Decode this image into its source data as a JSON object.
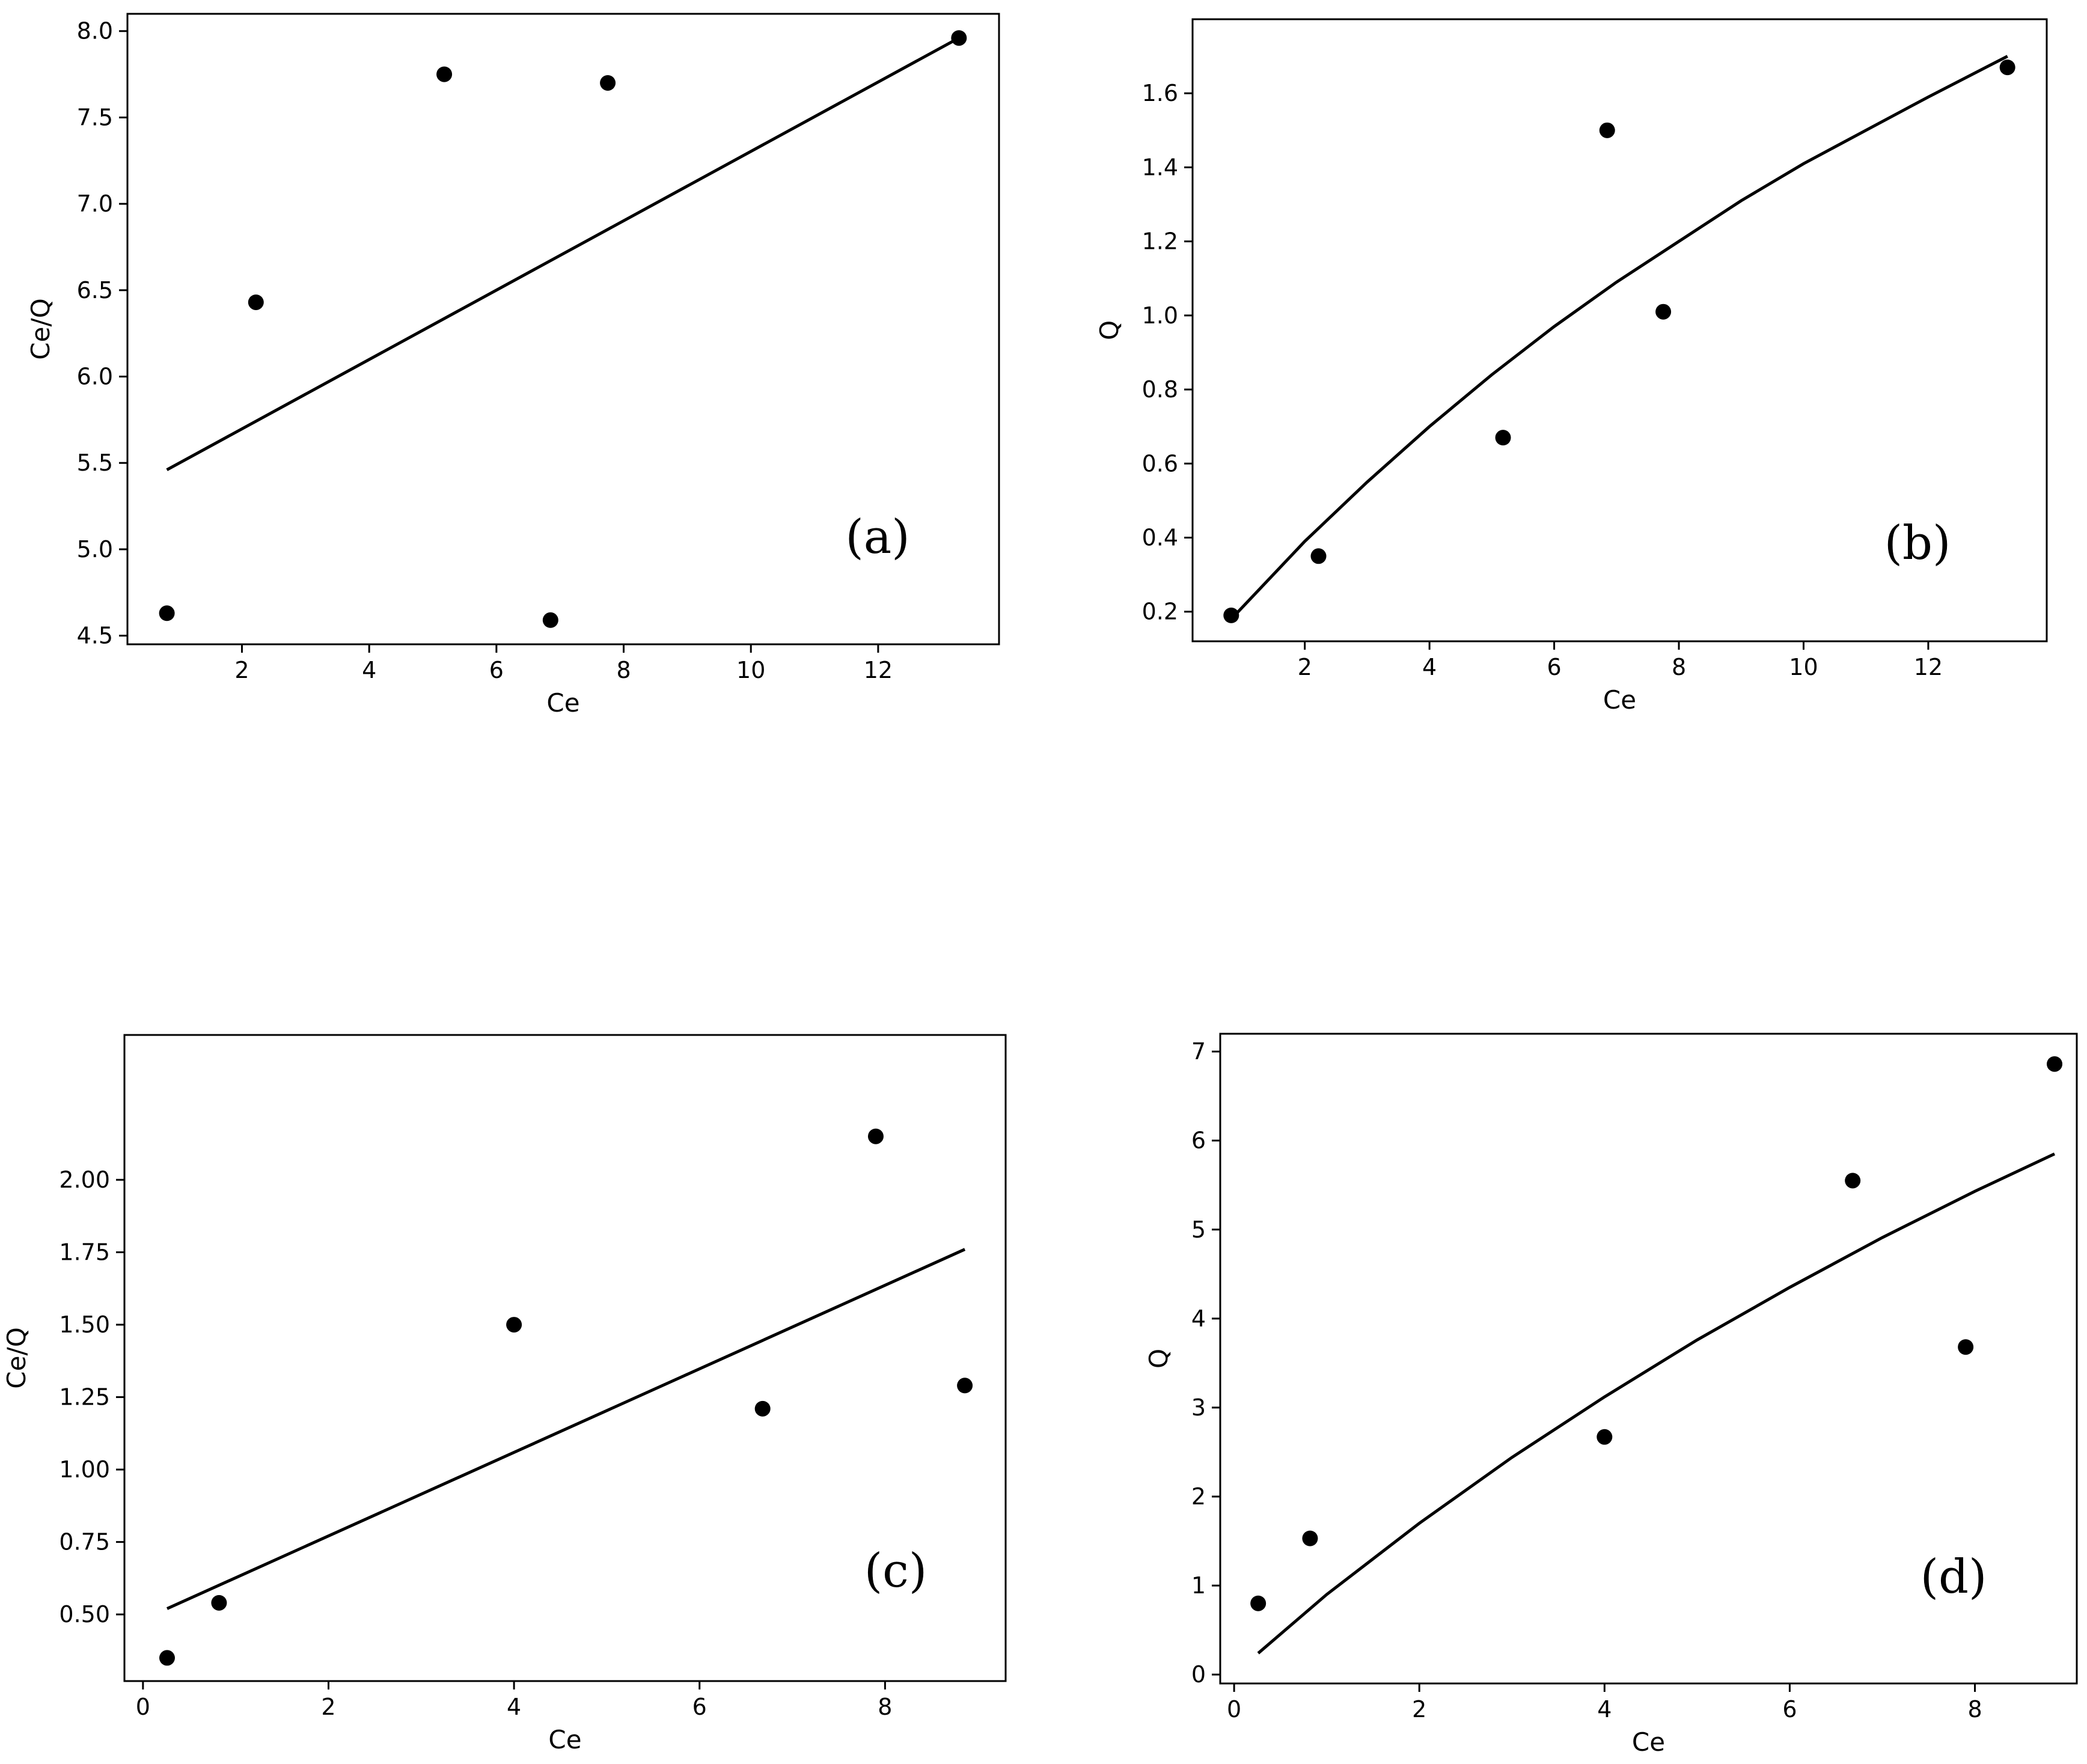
{
  "chart_data": [
    {
      "type": "scatter",
      "panel_label": "(a)",
      "xlabel": "Ce",
      "ylabel": "Ce/Q",
      "xlim": [
        0.2,
        13.9
      ],
      "ylim": [
        4.45,
        8.1
      ],
      "xticks": [
        2,
        4,
        6,
        8,
        10,
        12
      ],
      "yticks": [
        4.5,
        5.0,
        5.5,
        6.0,
        6.5,
        7.0,
        7.5,
        8.0
      ],
      "ytick_labels": [
        "4.5",
        "5.0",
        "5.5",
        "6.0",
        "6.5",
        "7.0",
        "7.5",
        "8.0"
      ],
      "points": {
        "x": [
          0.82,
          2.22,
          5.18,
          6.85,
          7.75,
          13.27
        ],
        "y": [
          4.63,
          6.43,
          7.75,
          4.59,
          7.7,
          7.96
        ]
      },
      "fit": {
        "x": [
          0.82,
          13.27
        ],
        "y": [
          5.46,
          7.96
        ]
      },
      "grid": false
    },
    {
      "type": "scatter",
      "panel_label": "(b)",
      "xlabel": "Ce",
      "ylabel": "Q",
      "xlim": [
        0.2,
        13.9
      ],
      "ylim": [
        0.12,
        1.8
      ],
      "xticks": [
        2,
        4,
        6,
        8,
        10,
        12
      ],
      "yticks": [
        0.2,
        0.4,
        0.6,
        0.8,
        1.0,
        1.2,
        1.4,
        1.6
      ],
      "ytick_labels": [
        "0.2",
        "0.4",
        "0.6",
        "0.8",
        "1.0",
        "1.2",
        "1.4",
        "1.6"
      ],
      "points": {
        "x": [
          0.82,
          2.22,
          5.18,
          6.85,
          7.75,
          13.27
        ],
        "y": [
          0.19,
          0.35,
          0.67,
          1.5,
          1.01,
          1.67
        ]
      },
      "fit": {
        "x": [
          0.82,
          2,
          3,
          4,
          5,
          6,
          7,
          8,
          9,
          10,
          11,
          12,
          13.27
        ],
        "y": [
          0.18,
          0.39,
          0.55,
          0.7,
          0.84,
          0.97,
          1.09,
          1.2,
          1.31,
          1.41,
          1.5,
          1.59,
          1.7
        ]
      },
      "grid": false
    },
    {
      "type": "scatter",
      "panel_label": "(c)",
      "xlabel": "Ce",
      "ylabel": "Ce/Q",
      "xlim": [
        -0.2,
        9.3
      ],
      "ylim": [
        0.27,
        2.5
      ],
      "xticks": [
        0,
        2,
        4,
        6,
        8
      ],
      "yticks": [
        0.5,
        0.75,
        1.0,
        1.25,
        1.5,
        1.75,
        2.0
      ],
      "ytick_labels": [
        "0.50",
        "0.75",
        "1.00",
        "1.25",
        "1.50",
        "1.75",
        "2.00"
      ],
      "points": {
        "x": [
          0.26,
          0.82,
          4.0,
          6.68,
          7.9,
          8.86
        ],
        "y": [
          0.35,
          0.54,
          1.5,
          1.21,
          2.15,
          1.29
        ]
      },
      "fit": {
        "x": [
          0.26,
          8.86
        ],
        "y": [
          0.52,
          1.76
        ]
      },
      "grid": false
    },
    {
      "type": "scatter",
      "panel_label": "(d)",
      "xlabel": "Ce",
      "ylabel": "Q",
      "xlim": [
        -0.15,
        9.1
      ],
      "ylim": [
        -0.1,
        7.2
      ],
      "xticks": [
        0,
        2,
        4,
        6,
        8
      ],
      "yticks": [
        0,
        1,
        2,
        3,
        4,
        5,
        6,
        7
      ],
      "ytick_labels": [
        "0",
        "1",
        "2",
        "3",
        "4",
        "5",
        "6",
        "7"
      ],
      "points": {
        "x": [
          0.26,
          0.82,
          4.0,
          6.68,
          7.9,
          8.86
        ],
        "y": [
          0.8,
          1.53,
          2.67,
          5.55,
          3.68,
          6.86
        ]
      },
      "fit": {
        "x": [
          0.26,
          1,
          2,
          3,
          4,
          5,
          6,
          7,
          8,
          8.86
        ],
        "y": [
          0.24,
          0.9,
          1.7,
          2.44,
          3.12,
          3.76,
          4.35,
          4.91,
          5.43,
          5.85
        ]
      },
      "grid": false
    }
  ]
}
